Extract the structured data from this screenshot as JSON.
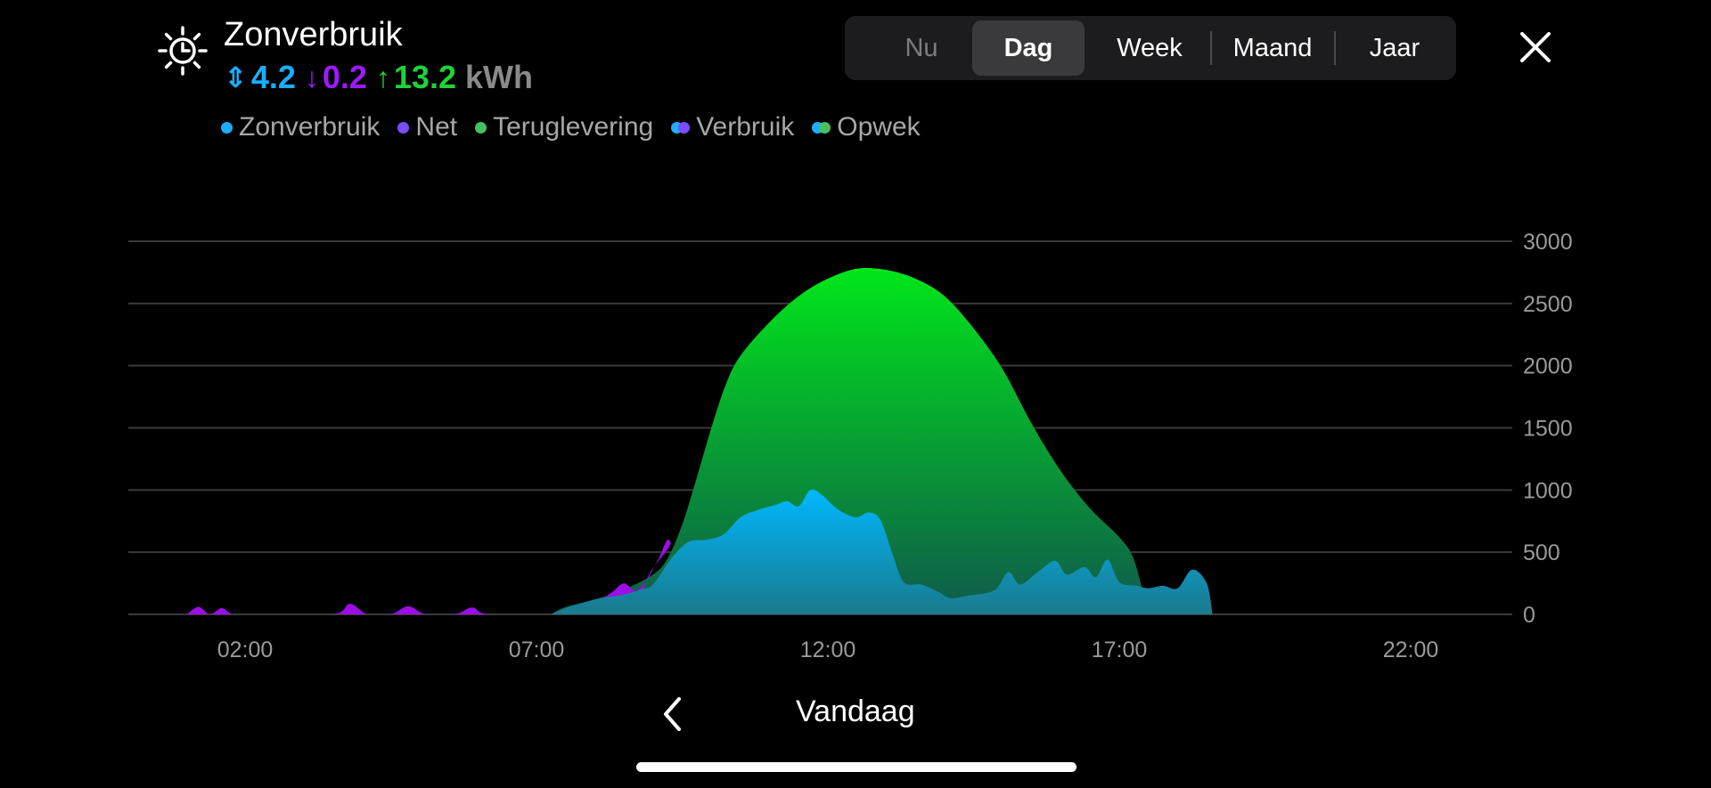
{
  "header": {
    "title": "Zonverbruik",
    "icon": "sun-clock-icon",
    "stats": [
      {
        "symbol": "⇕",
        "icon": "up-down-chevrons-icon",
        "value": "4.2",
        "color": "#1aaefc"
      },
      {
        "symbol": "↓",
        "icon": "arrow-down-icon",
        "value": "0.2",
        "color": "#9d1aff"
      },
      {
        "symbol": "↑",
        "icon": "arrow-up-icon",
        "value": "13.2",
        "color": "#1fd23a"
      }
    ],
    "unit": "kWh"
  },
  "legend": [
    {
      "label": "Zonverbruik",
      "colors": [
        "#1aaefc"
      ]
    },
    {
      "label": "Net",
      "colors": [
        "#7b4dff"
      ]
    },
    {
      "label": "Teruglevering",
      "colors": [
        "#46c060"
      ]
    },
    {
      "label": "Verbruik",
      "colors": [
        "#1aaefc",
        "#7b4dff"
      ]
    },
    {
      "label": "Opwek",
      "colors": [
        "#1aaefc",
        "#46c060"
      ]
    }
  ],
  "tabs": [
    {
      "label": "Nu",
      "state": "disabled"
    },
    {
      "label": "Dag",
      "state": "active"
    },
    {
      "label": "Week",
      "state": "normal"
    },
    {
      "label": "Maand",
      "state": "normal"
    },
    {
      "label": "Jaar",
      "state": "normal"
    }
  ],
  "footer": {
    "label": "Vandaag"
  },
  "colors": {
    "background": "#000000",
    "green_top": "#00e61a",
    "green_bottom": "#0f5a4c",
    "blue_top": "#00b8ff",
    "blue_bottom": "#1a7a8c",
    "purple": "#9b0fe6",
    "grid": "#3a3a3a"
  },
  "chart_data": {
    "type": "area",
    "x_unit": "hour of day",
    "xlim": [
      0,
      24
    ],
    "ylim": [
      0,
      3000
    ],
    "x_tick_labels": [
      "02:00",
      "07:00",
      "12:00",
      "17:00",
      "22:00"
    ],
    "x_ticks": [
      2,
      7,
      12,
      17,
      22
    ],
    "y_ticks": [
      0,
      500,
      1000,
      1500,
      2000,
      2500,
      3000
    ],
    "grid": true,
    "series": [
      {
        "name": "Teruglevering",
        "color": "#00e61a",
        "points": [
          [
            7.25,
            0
          ],
          [
            7.5,
            60
          ],
          [
            8,
            120
          ],
          [
            8.5,
            200
          ],
          [
            9,
            320
          ],
          [
            9.25,
            450
          ],
          [
            9.5,
            720
          ],
          [
            9.75,
            1100
          ],
          [
            10,
            1500
          ],
          [
            10.25,
            1850
          ],
          [
            10.5,
            2080
          ],
          [
            11,
            2350
          ],
          [
            11.5,
            2560
          ],
          [
            12,
            2700
          ],
          [
            12.5,
            2780
          ],
          [
            13,
            2770
          ],
          [
            13.5,
            2700
          ],
          [
            14,
            2560
          ],
          [
            14.5,
            2300
          ],
          [
            15,
            1970
          ],
          [
            15.5,
            1530
          ],
          [
            16,
            1150
          ],
          [
            16.5,
            850
          ],
          [
            17,
            620
          ],
          [
            17.25,
            440
          ],
          [
            17.5,
            0
          ]
        ]
      },
      {
        "name": "Net",
        "color": "#9b0fe6",
        "points": [
          [
            1,
            0
          ],
          [
            1.2,
            60
          ],
          [
            1.4,
            0
          ],
          [
            1.6,
            50
          ],
          [
            1.8,
            0
          ],
          [
            2.2,
            0
          ],
          [
            3.5,
            0
          ],
          [
            3.8,
            85
          ],
          [
            4.1,
            0
          ],
          [
            4.5,
            0
          ],
          [
            4.8,
            65
          ],
          [
            5.1,
            0
          ],
          [
            5.6,
            0
          ],
          [
            5.9,
            55
          ],
          [
            6.2,
            0
          ],
          [
            7.5,
            0
          ],
          [
            8,
            90
          ],
          [
            8.3,
            180
          ],
          [
            8.5,
            250
          ],
          [
            8.7,
            190
          ],
          [
            8.9,
            280
          ],
          [
            9.1,
            450
          ],
          [
            9.3,
            580
          ],
          [
            9.5,
            0
          ],
          [
            17.6,
            0
          ],
          [
            17.8,
            50
          ],
          [
            18,
            60
          ],
          [
            18,
            0
          ]
        ]
      },
      {
        "name": "Zonverbruik",
        "color": "#00b8ff",
        "points": [
          [
            7.25,
            0
          ],
          [
            7.5,
            50
          ],
          [
            8,
            120
          ],
          [
            8.5,
            160
          ],
          [
            8.8,
            200
          ],
          [
            9,
            240
          ],
          [
            9.3,
            440
          ],
          [
            9.6,
            580
          ],
          [
            9.9,
            600
          ],
          [
            10.2,
            640
          ],
          [
            10.5,
            780
          ],
          [
            10.8,
            840
          ],
          [
            11.1,
            880
          ],
          [
            11.3,
            910
          ],
          [
            11.5,
            870
          ],
          [
            11.7,
            1000
          ],
          [
            11.9,
            960
          ],
          [
            12.1,
            870
          ],
          [
            12.3,
            810
          ],
          [
            12.5,
            780
          ],
          [
            12.7,
            820
          ],
          [
            12.9,
            760
          ],
          [
            13.1,
            500
          ],
          [
            13.3,
            260
          ],
          [
            13.6,
            240
          ],
          [
            13.9,
            180
          ],
          [
            14.1,
            130
          ],
          [
            14.4,
            150
          ],
          [
            14.7,
            170
          ],
          [
            14.9,
            210
          ],
          [
            15.1,
            340
          ],
          [
            15.3,
            240
          ],
          [
            15.6,
            340
          ],
          [
            15.9,
            430
          ],
          [
            16.1,
            320
          ],
          [
            16.4,
            380
          ],
          [
            16.6,
            300
          ],
          [
            16.8,
            440
          ],
          [
            17.0,
            260
          ],
          [
            17.3,
            230
          ],
          [
            17.5,
            210
          ],
          [
            17.75,
            230
          ],
          [
            18,
            210
          ],
          [
            18.25,
            360
          ],
          [
            18.5,
            250
          ],
          [
            18.6,
            0
          ]
        ]
      }
    ]
  }
}
